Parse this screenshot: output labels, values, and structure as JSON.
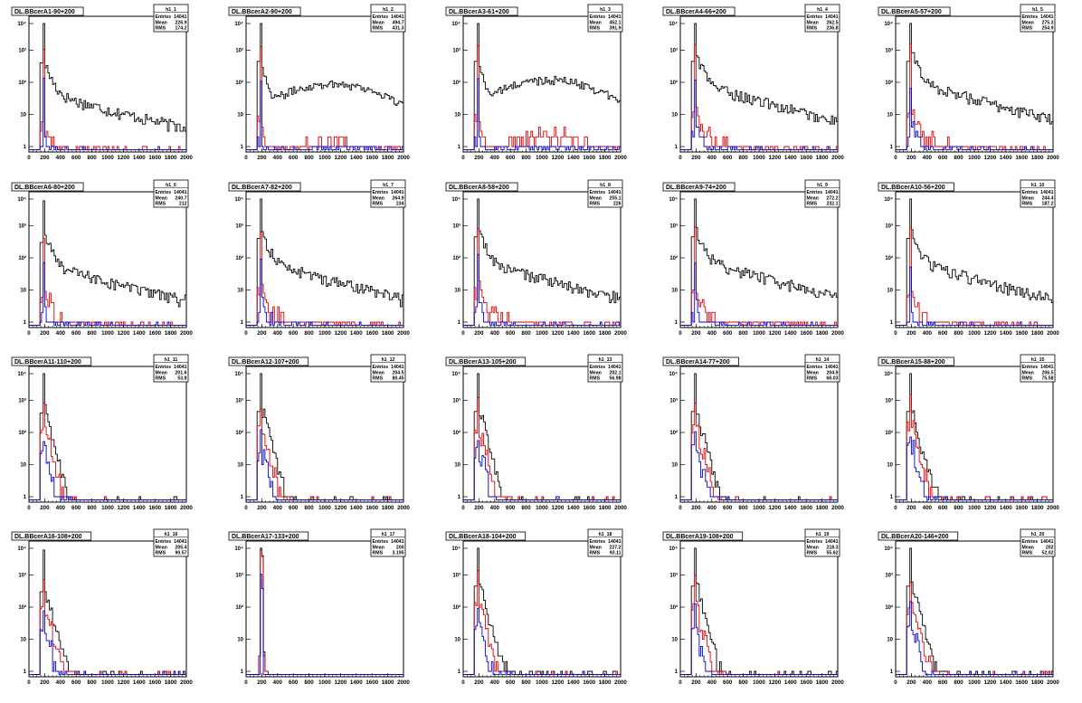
{
  "chart_data": {
    "type": "histogram-grid",
    "scale": "log-y",
    "x_ticks": [
      "0",
      "200",
      "400",
      "600",
      "800",
      "1000",
      "1200",
      "1400",
      "1600",
      "1800",
      "2000"
    ],
    "y_ticks": [
      "1",
      "10",
      "10²",
      "10³",
      "10⁴"
    ],
    "y_tick_values": [
      1,
      10,
      100,
      1000,
      10000
    ],
    "xlim": [
      0,
      2000
    ],
    "series_colors": {
      "total": "#000000",
      "mid": "#dd0000",
      "low": "#0000cc"
    },
    "panels": [
      {
        "title": "DL.BBcerA1-90+200",
        "stats_name": "h1_1",
        "entries": "14041",
        "mean": "226.9",
        "rms": "174.2",
        "peak": 8000,
        "shape": "longtail",
        "tail": 6,
        "red": 0.012,
        "blue": 0.004
      },
      {
        "title": "DL.BBcerA2-90+200",
        "stats_name": "h1_2",
        "entries": "14041",
        "mean": "494.7",
        "rms": "431.3",
        "peak": 9000,
        "shape": "plateau",
        "tail": 90,
        "red": 0.015,
        "blue": 0.004
      },
      {
        "title": "DL.BBcerA3-61+200",
        "stats_name": "h1_3",
        "entries": "14041",
        "mean": "452.1",
        "rms": "391.9",
        "peak": 9000,
        "shape": "plateau",
        "tail": 120,
        "red": 0.018,
        "blue": 0.005
      },
      {
        "title": "DL.BBcerA4-66+200",
        "stats_name": "h1_4",
        "entries": "14041",
        "mean": "262.5",
        "rms": "236.8",
        "peak": 9000,
        "shape": "longtail",
        "tail": 12,
        "red": 0.018,
        "blue": 0.005
      },
      {
        "title": "DL.BBcerA5-57+200",
        "stats_name": "h1_5",
        "entries": "14041",
        "mean": "275.3",
        "rms": "254.9",
        "peak": 9000,
        "shape": "longtail",
        "tail": 14,
        "red": 0.02,
        "blue": 0.005
      },
      {
        "title": "DL.BBcerA6-80+200",
        "stats_name": "h1_6",
        "entries": "14041",
        "mean": "240.7",
        "rms": "212",
        "peak": 6000,
        "shape": "longtail",
        "tail": 8,
        "red": 0.02,
        "blue": 0.006
      },
      {
        "title": "DL.BBcerA7-82+200",
        "stats_name": "h1_7",
        "entries": "14041",
        "mean": "264.9",
        "rms": "234",
        "peak": 8000,
        "shape": "longtail",
        "tail": 10,
        "red": 0.02,
        "blue": 0.006
      },
      {
        "title": "DL.BBcerA8-58+200",
        "stats_name": "h1_8",
        "entries": "14041",
        "mean": "255.1",
        "rms": "226",
        "peak": 9000,
        "shape": "longtail",
        "tail": 10,
        "red": 0.02,
        "blue": 0.005
      },
      {
        "title": "DL.BBcerA9-74+200",
        "stats_name": "h1_9",
        "entries": "14041",
        "mean": "272.2",
        "rms": "232.1",
        "peak": 9000,
        "shape": "longtail",
        "tail": 12,
        "red": 0.016,
        "blue": 0.004
      },
      {
        "title": "DL.BBcerA10-56+200",
        "stats_name": "h1_10",
        "entries": "14041",
        "mean": "244.4",
        "rms": "187.2",
        "peak": 8000,
        "shape": "longtail",
        "tail": 10,
        "red": 0.015,
        "blue": 0.003
      },
      {
        "title": "DL.BBcerA11-110+200",
        "stats_name": "h1_11",
        "entries": "14041",
        "mean": "201.6",
        "rms": "53.8",
        "peak": 8000,
        "shape": "spike",
        "tail": 0.6,
        "red": 0.3,
        "blue": 0.05
      },
      {
        "title": "DL.BBcerA12-107+200",
        "stats_name": "h1_12",
        "entries": "14041",
        "mean": "204.5",
        "rms": "80.45",
        "peak": 9000,
        "shape": "spike",
        "tail": 0.8,
        "red": 0.25,
        "blue": 0.05
      },
      {
        "title": "DL.BBcerA13-105+200",
        "stats_name": "h1_13",
        "entries": "14041",
        "mean": "202.1",
        "rms": "56.98",
        "peak": 9000,
        "shape": "spike",
        "tail": 0.7,
        "red": 0.25,
        "blue": 0.06
      },
      {
        "title": "DL.BBcerA14-77+200",
        "stats_name": "h1_14",
        "entries": "14041",
        "mean": "204.9",
        "rms": "66.03",
        "peak": 9000,
        "shape": "spike",
        "tail": 0.7,
        "red": 0.3,
        "blue": 0.07
      },
      {
        "title": "DL.BBcerA15-88+200",
        "stats_name": "h1_15",
        "entries": "14041",
        "mean": "206.5",
        "rms": "75.58",
        "peak": 9000,
        "shape": "spike",
        "tail": 0.9,
        "red": 0.35,
        "blue": 0.08
      },
      {
        "title": "DL.BBcerA16-108+200",
        "stats_name": "h1_16",
        "entries": "14041",
        "mean": "205.4",
        "rms": "90.57",
        "peak": 6000,
        "shape": "spike",
        "tail": 1.0,
        "red": 0.3,
        "blue": 0.07
      },
      {
        "title": "DL.BBcerA17-133+200",
        "stats_name": "h1_17",
        "entries": "14041",
        "mean": "200",
        "rms": "3.195",
        "peak": 8000,
        "shape": "narrow",
        "tail": 0,
        "red": 0.8,
        "blue": 0.1
      },
      {
        "title": "DL.BBcerA18-104+200",
        "stats_name": "h1_18",
        "entries": "14041",
        "mean": "227.2",
        "rms": "93.11",
        "peak": 9000,
        "shape": "spike",
        "tail": 1.2,
        "red": 0.25,
        "blue": 0.05
      },
      {
        "title": "DL.BBcerA19-108+200",
        "stats_name": "h1_19",
        "entries": "14041",
        "mean": "218.3",
        "rms": "55.62",
        "peak": 9000,
        "shape": "spike",
        "tail": 0.8,
        "red": 0.2,
        "blue": 0.04
      },
      {
        "title": "DL.BBcerA20-146+200",
        "stats_name": "h1_20",
        "entries": "14041",
        "mean": "202",
        "rms": "52.02",
        "peak": 9000,
        "shape": "spike",
        "tail": 0.8,
        "red": 0.25,
        "blue": 0.05
      }
    ]
  },
  "labels": {
    "entries": "Entries",
    "mean": "Mean",
    "rms": "RMS"
  }
}
